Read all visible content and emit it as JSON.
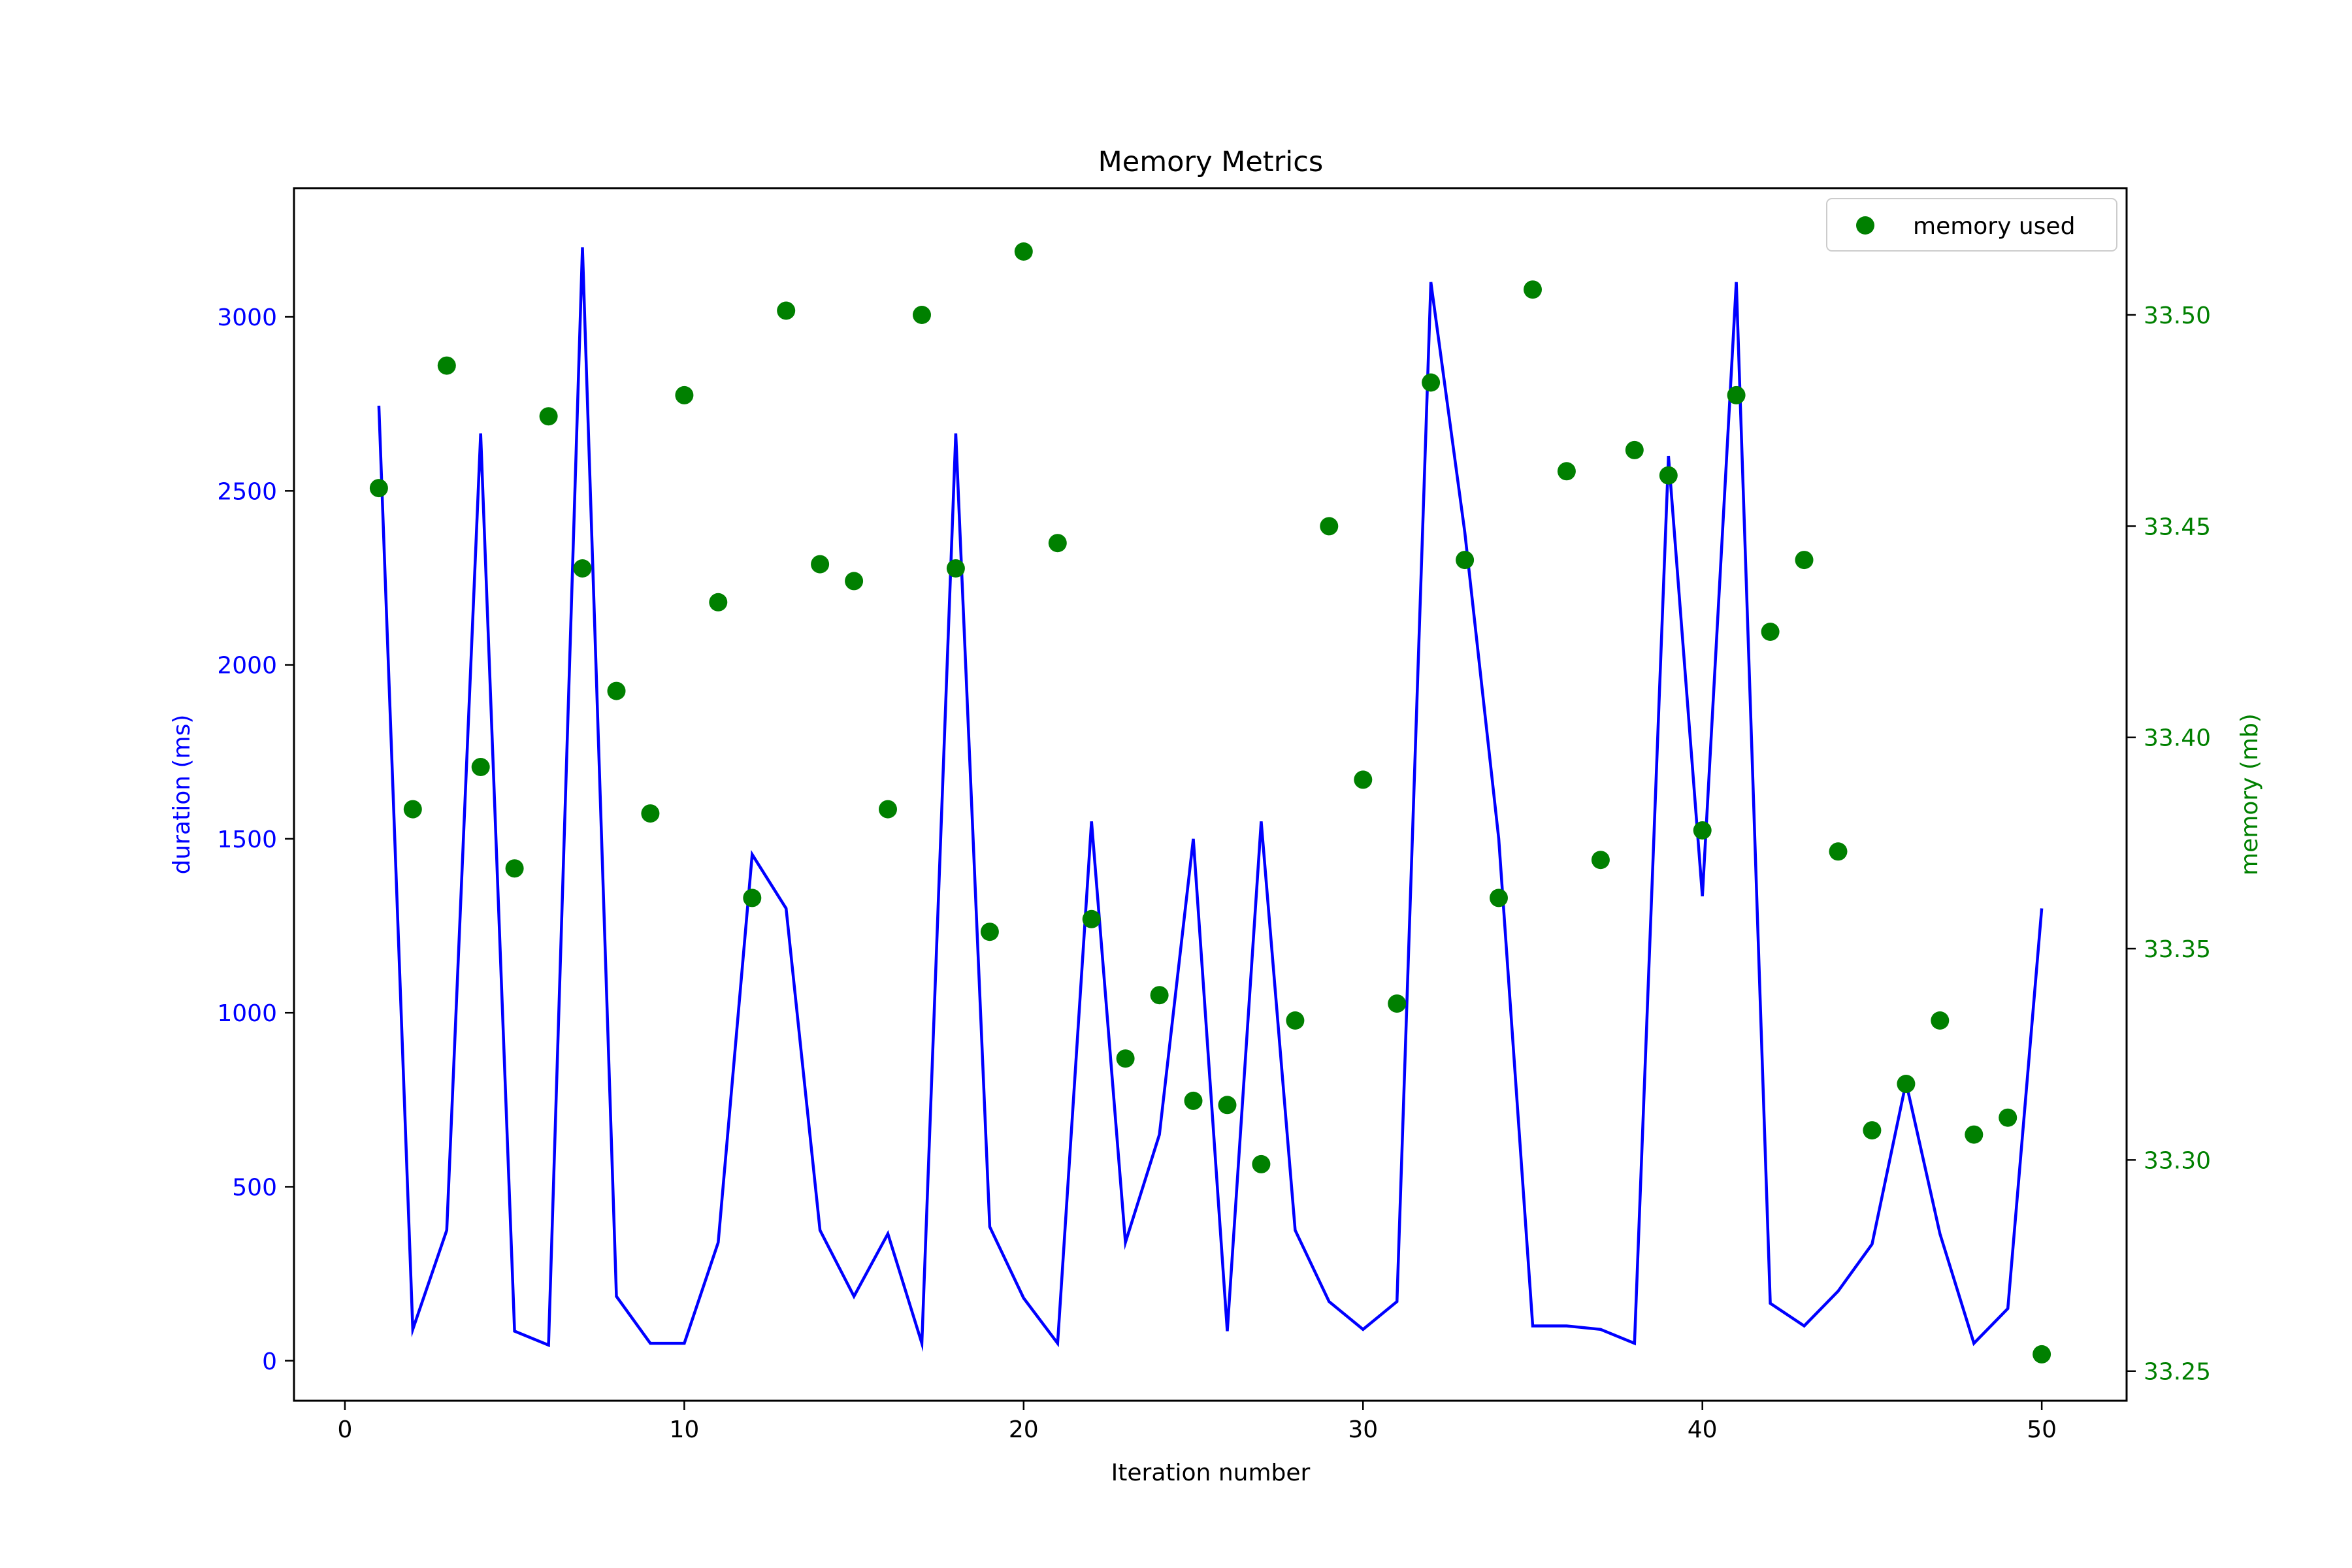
{
  "chart_data": {
    "type": "line+scatter",
    "title": "Memory Metrics",
    "xlabel": "Iteration number",
    "ylabel_left": "duration (ms)",
    "ylabel_right": "memory (mb)",
    "xlim": [
      -1.5,
      52.5
    ],
    "ylim_left": [
      -115,
      3370
    ],
    "ylim_right": [
      33.243,
      33.53
    ],
    "x_ticks": [
      0,
      10,
      20,
      30,
      40,
      50
    ],
    "y_left_ticks": [
      0,
      500,
      1000,
      1500,
      2000,
      2500,
      3000
    ],
    "y_right_ticks": [
      33.25,
      33.3,
      33.35,
      33.4,
      33.45,
      33.5
    ],
    "y_right_tick_labels": [
      "33.25",
      "33.30",
      "33.35",
      "33.40",
      "33.45",
      "33.50"
    ],
    "grid": false,
    "legend_position": "top-right",
    "x": [
      1,
      2,
      3,
      4,
      5,
      6,
      7,
      8,
      9,
      10,
      11,
      12,
      13,
      14,
      15,
      16,
      17,
      18,
      19,
      20,
      21,
      22,
      23,
      24,
      25,
      26,
      27,
      28,
      29,
      30,
      31,
      32,
      33,
      34,
      35,
      36,
      37,
      38,
      39,
      40,
      41,
      42,
      43,
      44,
      45,
      46,
      47,
      48,
      49,
      50
    ],
    "series": [
      {
        "name": "duration",
        "axis": "left",
        "style": "line",
        "color": "#0000ff",
        "values": [
          2745,
          90,
          375,
          2665,
          85,
          45,
          3200,
          185,
          50,
          50,
          340,
          1455,
          1300,
          375,
          185,
          365,
          50,
          2665,
          385,
          180,
          50,
          1550,
          340,
          650,
          1500,
          85,
          1550,
          375,
          170,
          90,
          170,
          3100,
          2380,
          1500,
          100,
          100,
          90,
          50,
          2600,
          1335,
          3100,
          165,
          100,
          200,
          335,
          800,
          365,
          50,
          150,
          1300
        ]
      },
      {
        "name": "memory used",
        "axis": "right",
        "style": "scatter",
        "color": "#008000",
        "values": [
          33.459,
          33.383,
          33.488,
          33.393,
          33.369,
          33.476,
          33.44,
          33.411,
          33.382,
          33.481,
          33.432,
          33.362,
          33.501,
          33.441,
          33.437,
          33.383,
          33.5,
          33.44,
          33.354,
          33.515,
          33.446,
          33.357,
          33.324,
          33.339,
          33.314,
          33.313,
          33.299,
          33.333,
          33.45,
          33.39,
          33.337,
          33.484,
          33.442,
          33.362,
          33.506,
          33.463,
          33.371,
          33.468,
          33.462,
          33.378,
          33.481,
          33.425,
          33.442,
          33.373,
          33.307,
          33.318,
          33.333,
          33.306,
          33.31,
          33.254
        ]
      }
    ]
  }
}
